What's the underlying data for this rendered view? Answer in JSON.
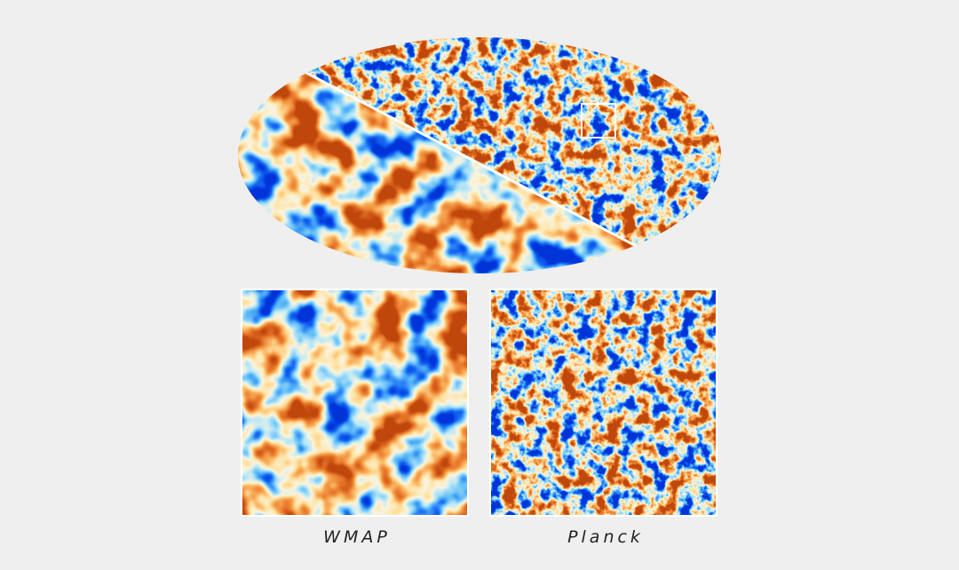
{
  "panels": [
    {
      "label": "WMAP"
    },
    {
      "label": "Planck"
    }
  ]
}
